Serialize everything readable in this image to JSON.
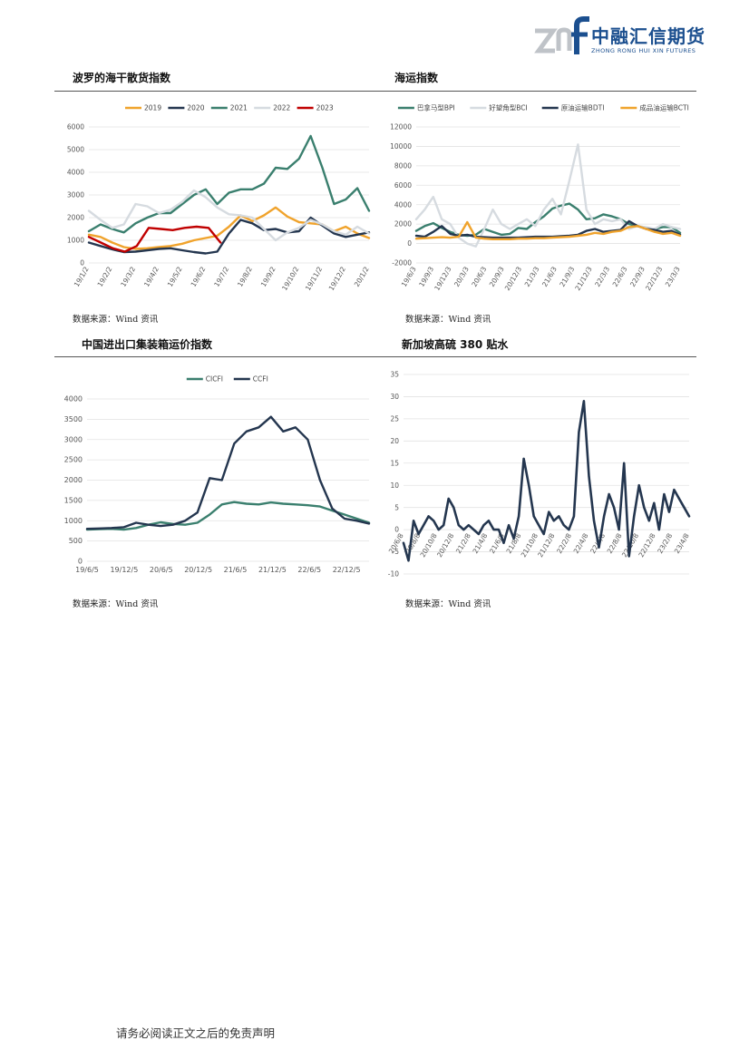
{
  "header": {
    "logo_mark": "znf",
    "company_cn": "中融汇信期货",
    "company_en": "ZHONG RONG HUI XIN FUTURES",
    "colors": {
      "brand": "#1b4f8f",
      "mark_gray": "#bfc3c8"
    }
  },
  "sections": [
    {
      "title": "波罗的海干散货指数",
      "source": "数据来源：Wind 资讯"
    },
    {
      "title": "海运指数",
      "source": "数据来源：Wind 资讯"
    },
    {
      "title": "中国进出口集装箱运价指数",
      "source": "数据来源：Wind 资讯"
    },
    {
      "title": "新加坡高硫 380 贴水",
      "source": "数据来源：Wind 资讯"
    }
  ],
  "footer": {
    "disclaimer": "请务必阅读正文之后的免责声明"
  },
  "chart_data": [
    {
      "type": "line",
      "ylim": [
        0,
        6000
      ],
      "yticks": [
        0,
        1000,
        2000,
        3000,
        4000,
        5000,
        6000
      ],
      "x_labels": [
        "19/1/2",
        "19/2/2",
        "19/3/2",
        "19/4/2",
        "19/5/2",
        "19/6/2",
        "19/7/2",
        "19/8/2",
        "19/9/2",
        "19/10/2",
        "19/11/2",
        "19/12/2",
        "20/1/2"
      ],
      "legend_position": "top",
      "series": [
        {
          "name": "2019",
          "color": "#f0a32c",
          "values": [
            1250,
            1150,
            900,
            700,
            620,
            650,
            700,
            750,
            850,
            1000,
            1100,
            1200,
            1600,
            2100,
            1850,
            2100,
            2450,
            2050,
            1800,
            1750,
            1700,
            1400,
            1600,
            1300,
            1100
          ]
        },
        {
          "name": "2020",
          "color": "#24364f",
          "values": [
            900,
            750,
            600,
            480,
            500,
            560,
            620,
            650,
            560,
            480,
            420,
            500,
            1300,
            1900,
            1750,
            1450,
            1500,
            1350,
            1400,
            2000,
            1650,
            1300,
            1150,
            1250,
            1350
          ]
        },
        {
          "name": "2021",
          "color": "#3a7f6e",
          "values": [
            1400,
            1700,
            1500,
            1350,
            1750,
            2000,
            2200,
            2200,
            2600,
            3000,
            3250,
            2600,
            3100,
            3250,
            3250,
            3500,
            4200,
            4150,
            4600,
            5600,
            4200,
            2600,
            2800,
            3300,
            2300
          ]
        },
        {
          "name": "2022",
          "color": "#d6dbe0",
          "values": [
            2300,
            1900,
            1550,
            1700,
            2600,
            2500,
            2200,
            2350,
            2700,
            3200,
            2900,
            2450,
            2150,
            2100,
            2000,
            1500,
            1000,
            1350,
            1550,
            1900,
            1700,
            1400,
            1250,
            1600,
            1300
          ]
        },
        {
          "name": "2023",
          "color": "#c00000",
          "values": [
            1150,
            900,
            650,
            500,
            750,
            1550,
            1500,
            1450,
            1550,
            1600,
            1550,
            900
          ]
        }
      ]
    },
    {
      "type": "line",
      "ylim": [
        -2000,
        12000
      ],
      "yticks": [
        -2000,
        0,
        2000,
        4000,
        6000,
        8000,
        10000,
        12000
      ],
      "x_labels": [
        "19/6/3",
        "19/9/3",
        "19/12/3",
        "20/3/3",
        "20/6/3",
        "20/9/3",
        "20/12/3",
        "21/3/3",
        "21/6/3",
        "21/9/3",
        "21/12/3",
        "22/3/3",
        "22/6/3",
        "22/9/3",
        "22/12/3",
        "23/3/3"
      ],
      "legend_position": "top",
      "series": [
        {
          "name": "巴拿马型BPI",
          "color": "#3a7f6e",
          "values": [
            1300,
            1800,
            2100,
            1600,
            1200,
            900,
            800,
            900,
            1500,
            1200,
            900,
            1000,
            1600,
            1500,
            2200,
            2800,
            3600,
            3900,
            4100,
            3500,
            2500,
            2600,
            3000,
            2800,
            2500,
            2000,
            1800,
            1600,
            1500,
            1700,
            1700,
            1100
          ]
        },
        {
          "name": "好望角型BCI",
          "color": "#d6dbe0",
          "values": [
            2500,
            3500,
            4800,
            2500,
            2000,
            600,
            0,
            -300,
            1500,
            3500,
            2000,
            1500,
            2000,
            2500,
            1800,
            3500,
            4600,
            3000,
            6500,
            10200,
            3500,
            2000,
            2500,
            2300,
            2500,
            1500,
            1800,
            1700,
            1500,
            2000,
            1700,
            1500
          ]
        },
        {
          "name": "原油运输BDTI",
          "color": "#24364f",
          "values": [
            800,
            700,
            1200,
            1800,
            1000,
            800,
            900,
            700,
            650,
            600,
            600,
            600,
            600,
            650,
            700,
            700,
            700,
            750,
            800,
            900,
            1300,
            1500,
            1200,
            1300,
            1400,
            2300,
            1800,
            1500,
            1400,
            1200,
            1300,
            900
          ]
        },
        {
          "name": "成品油运输BCTI",
          "color": "#f0a32c",
          "values": [
            500,
            550,
            600,
            650,
            600,
            700,
            2200,
            600,
            500,
            450,
            450,
            450,
            500,
            500,
            550,
            550,
            600,
            650,
            700,
            800,
            900,
            1100,
            1000,
            1200,
            1300,
            1700,
            1800,
            1500,
            1200,
            1000,
            1100,
            800
          ]
        }
      ]
    },
    {
      "type": "line",
      "ylim": [
        0,
        4000
      ],
      "yticks": [
        0,
        500,
        1000,
        1500,
        2000,
        2500,
        3000,
        3500,
        4000
      ],
      "x_labels": [
        "19/6/5",
        "19/12/5",
        "20/6/5",
        "20/12/5",
        "21/6/5",
        "21/12/5",
        "22/6/5",
        "22/12/5"
      ],
      "legend_position": "top",
      "series": [
        {
          "name": "CICFI",
          "color": "#3a7f6e",
          "values": [
            780,
            790,
            800,
            780,
            820,
            900,
            960,
            920,
            900,
            950,
            1150,
            1400,
            1460,
            1420,
            1400,
            1450,
            1420,
            1400,
            1380,
            1350,
            1250,
            1150,
            1050,
            950
          ]
        },
        {
          "name": "CCFI",
          "color": "#24364f",
          "values": [
            800,
            810,
            820,
            840,
            950,
            900,
            870,
            900,
            1000,
            1200,
            2050,
            2000,
            2900,
            3200,
            3300,
            3560,
            3200,
            3300,
            3000,
            2000,
            1300,
            1050,
            1000,
            930
          ]
        }
      ]
    },
    {
      "type": "line",
      "ylim": [
        -10,
        35
      ],
      "yticks": [
        -10,
        -5,
        0,
        5,
        10,
        15,
        20,
        25,
        30,
        35
      ],
      "x_labels": [
        "20/6/8",
        "20/8/8",
        "20/10/8",
        "20/12/8",
        "21/2/8",
        "21/4/8",
        "21/6/8",
        "21/8/8",
        "21/10/8",
        "21/12/8",
        "22/2/8",
        "22/4/8",
        "22/6/8",
        "22/8/8",
        "22/10/8",
        "22/12/8",
        "23/2/8",
        "23/4/8"
      ],
      "series": [
        {
          "name": "",
          "color": "#24364f",
          "values": [
            -3,
            -7,
            2,
            -1,
            1,
            3,
            2,
            0,
            1,
            7,
            5,
            1,
            0,
            1,
            0,
            -1,
            1,
            2,
            0,
            0,
            -3,
            1,
            -2,
            3,
            16,
            10,
            3,
            1,
            -1,
            4,
            2,
            3,
            1,
            0,
            3,
            22,
            29,
            12,
            2,
            -4,
            3,
            8,
            5,
            0,
            15,
            -6,
            3,
            10,
            5,
            2,
            6,
            0,
            8,
            4,
            9,
            7,
            5,
            3
          ]
        }
      ]
    }
  ]
}
